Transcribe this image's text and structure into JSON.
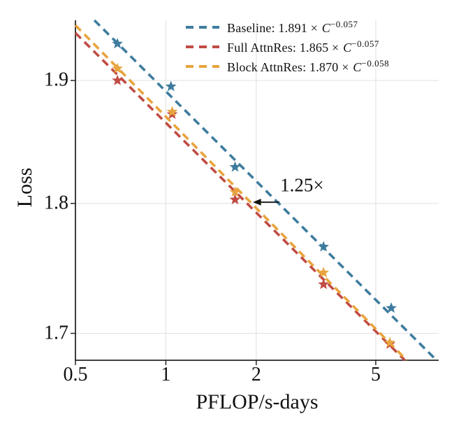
{
  "chart_data": {
    "type": "scatter",
    "title": "",
    "xlabel": "PFLOP/s-days",
    "ylabel": "Loss",
    "xscale": "log",
    "yscale": "log",
    "xlim": [
      0.5,
      8.1
    ],
    "ylim": [
      1.68,
      1.951
    ],
    "grid": true,
    "legend_position": "upper right, no frame",
    "xticks": [
      {
        "value": 0.5,
        "label": "0.5"
      },
      {
        "value": 1,
        "label": "1"
      },
      {
        "value": 2,
        "label": "2"
      },
      {
        "value": 5,
        "label": "5"
      }
    ],
    "yticks": [
      {
        "value": 1.9,
        "label": "1.9"
      },
      {
        "value": 1.8,
        "label": "1.8"
      },
      {
        "value": 1.7,
        "label": "1.7"
      }
    ],
    "legend": {
      "times_symbol": "×",
      "base_symbol": "C"
    },
    "series": [
      {
        "id": "baseline",
        "name": "Baseline",
        "color": "#3e7c9e",
        "marker": "star",
        "line_style": "dashed",
        "fit": {
          "coef": 1.891,
          "exp": -0.057,
          "coef_text": "1.891",
          "exp_text": "−0.057"
        },
        "points": [
          [
            0.69,
            1.931
          ],
          [
            1.04,
            1.895
          ],
          [
            1.7,
            1.829
          ],
          [
            3.35,
            1.766
          ],
          [
            5.63,
            1.719
          ]
        ]
      },
      {
        "id": "full-attnres",
        "name": "Full AttnRes",
        "color": "#c04c44",
        "marker": "star",
        "line_style": "dashed",
        "fit": {
          "coef": 1.865,
          "exp": -0.057,
          "coef_text": "1.865",
          "exp_text": "−0.057"
        },
        "points": [
          [
            0.69,
            1.9
          ],
          [
            1.05,
            1.872
          ],
          [
            1.7,
            1.803
          ],
          [
            3.35,
            1.737
          ],
          [
            5.57,
            1.692
          ]
        ]
      },
      {
        "id": "block-attnres",
        "name": "Block AttnRes",
        "color": "#e8a43e",
        "marker": "star",
        "line_style": "dashed",
        "fit": {
          "coef": 1.87,
          "exp": -0.058,
          "coef_text": "1.870",
          "exp_text": "−0.058"
        },
        "points": [
          [
            0.69,
            1.91
          ],
          [
            1.05,
            1.874
          ],
          [
            1.7,
            1.809
          ],
          [
            3.35,
            1.746
          ],
          [
            5.57,
            1.693
          ]
        ]
      }
    ],
    "annotation": {
      "label": "1.25×",
      "arrow": {
        "x_from": 2.39,
        "x_to": 1.95,
        "y": 1.801,
        "direction": "left"
      },
      "label_pos": {
        "x": 2.84,
        "y": 1.8145
      }
    },
    "style": {
      "grid_color": "#e4e4e4",
      "spine_color": "#262626",
      "text_color": "#111111",
      "background": "#ffffff"
    }
  }
}
